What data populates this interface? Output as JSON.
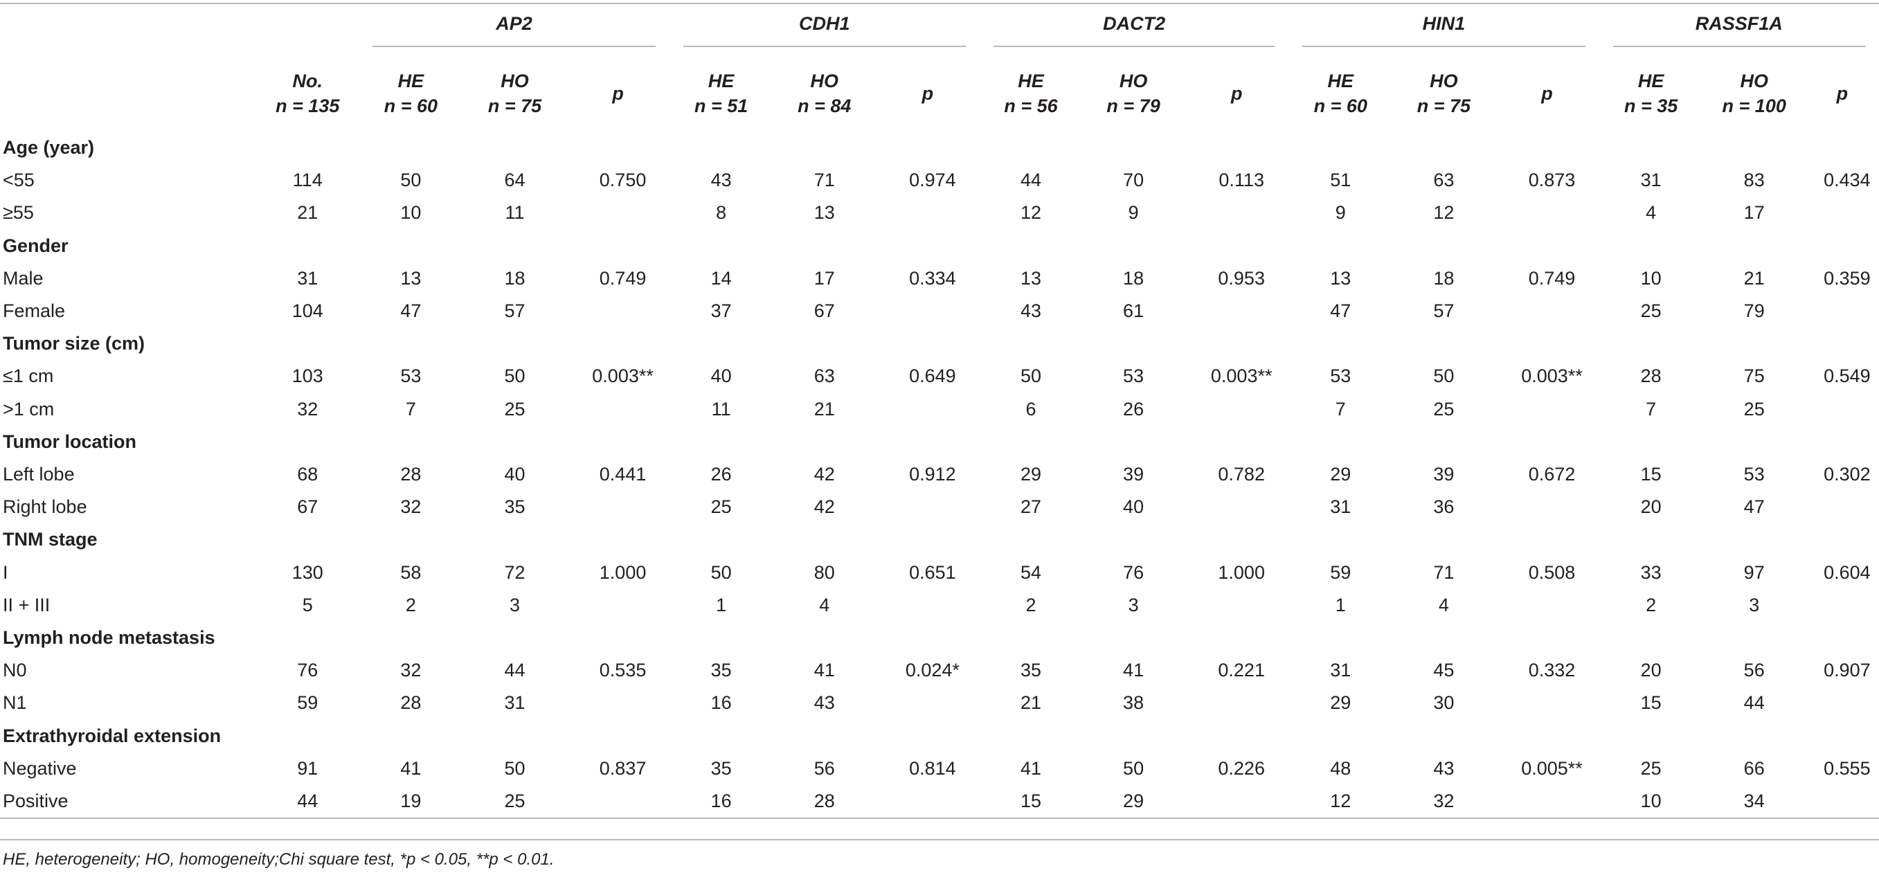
{
  "genes": [
    "AP2",
    "CDH1",
    "DACT2",
    "HIN1",
    "RASSF1A"
  ],
  "header": {
    "total": {
      "label": "No.",
      "n": "n = 135"
    },
    "gene_subheaders": [
      {
        "he": "HE",
        "he_n": "n = 60",
        "ho": "HO",
        "ho_n": "n = 75",
        "p": "p"
      },
      {
        "he": "HE",
        "he_n": "n = 51",
        "ho": "HO",
        "ho_n": "n = 84",
        "p": "p"
      },
      {
        "he": "HE",
        "he_n": "n = 56",
        "ho": "HO",
        "ho_n": "n = 79",
        "p": "p"
      },
      {
        "he": "HE",
        "he_n": "n = 60",
        "ho": "HO",
        "ho_n": "n = 75",
        "p": "p"
      },
      {
        "he": "HE",
        "he_n": "n = 35",
        "ho": "HO",
        "ho_n": "n = 100",
        "p": "p"
      }
    ]
  },
  "sections": [
    {
      "title": "Age (year)",
      "rows": [
        {
          "label": "<55",
          "no": "114",
          "vals": [
            "50",
            "64",
            "0.750",
            "43",
            "71",
            "0.974",
            "44",
            "70",
            "0.113",
            "51",
            "63",
            "0.873",
            "31",
            "83",
            "0.434"
          ]
        },
        {
          "label": "≥55",
          "no": "21",
          "vals": [
            "10",
            "11",
            "",
            "8",
            "13",
            "",
            "12",
            "9",
            "",
            "9",
            "12",
            "",
            "4",
            "17",
            ""
          ]
        }
      ]
    },
    {
      "title": "Gender",
      "rows": [
        {
          "label": "Male",
          "no": "31",
          "vals": [
            "13",
            "18",
            "0.749",
            "14",
            "17",
            "0.334",
            "13",
            "18",
            "0.953",
            "13",
            "18",
            "0.749",
            "10",
            "21",
            "0.359"
          ]
        },
        {
          "label": "Female",
          "no": "104",
          "vals": [
            "47",
            "57",
            "",
            "37",
            "67",
            "",
            "43",
            "61",
            "",
            "47",
            "57",
            "",
            "25",
            "79",
            ""
          ]
        }
      ]
    },
    {
      "title": "Tumor size (cm)",
      "rows": [
        {
          "label": "≤1 cm",
          "no": "103",
          "vals": [
            "53",
            "50",
            "0.003**",
            "40",
            "63",
            "0.649",
            "50",
            "53",
            "0.003**",
            "53",
            "50",
            "0.003**",
            "28",
            "75",
            "0.549"
          ]
        },
        {
          "label": ">1 cm",
          "no": "32",
          "vals": [
            "7",
            "25",
            "",
            "11",
            "21",
            "",
            "6",
            "26",
            "",
            "7",
            "25",
            "",
            "7",
            "25",
            ""
          ]
        }
      ]
    },
    {
      "title": "Tumor location",
      "rows": [
        {
          "label": "Left lobe",
          "no": "68",
          "vals": [
            "28",
            "40",
            "0.441",
            "26",
            "42",
            "0.912",
            "29",
            "39",
            "0.782",
            "29",
            "39",
            "0.672",
            "15",
            "53",
            "0.302"
          ]
        },
        {
          "label": "Right lobe",
          "no": "67",
          "vals": [
            "32",
            "35",
            "",
            "25",
            "42",
            "",
            "27",
            "40",
            "",
            "31",
            "36",
            "",
            "20",
            "47",
            ""
          ]
        }
      ]
    },
    {
      "title": "TNM stage",
      "rows": [
        {
          "label": "I",
          "no": "130",
          "vals": [
            "58",
            "72",
            "1.000",
            "50",
            "80",
            "0.651",
            "54",
            "76",
            "1.000",
            "59",
            "71",
            "0.508",
            "33",
            "97",
            "0.604"
          ]
        },
        {
          "label": "II + III",
          "no": "5",
          "vals": [
            "2",
            "3",
            "",
            "1",
            "4",
            "",
            "2",
            "3",
            "",
            "1",
            "4",
            "",
            "2",
            "3",
            ""
          ]
        }
      ]
    },
    {
      "title": "Lymph node metastasis",
      "rows": [
        {
          "label": "N0",
          "no": "76",
          "vals": [
            "32",
            "44",
            "0.535",
            "35",
            "41",
            "0.024*",
            "35",
            "41",
            "0.221",
            "31",
            "45",
            "0.332",
            "20",
            "56",
            "0.907"
          ]
        },
        {
          "label": "N1",
          "no": "59",
          "vals": [
            "28",
            "31",
            "",
            "16",
            "43",
            "",
            "21",
            "38",
            "",
            "29",
            "30",
            "",
            "15",
            "44",
            ""
          ]
        }
      ]
    },
    {
      "title": "Extrathyroidal extension",
      "rows": [
        {
          "label": "Negative",
          "no": "91",
          "vals": [
            "41",
            "50",
            "0.837",
            "35",
            "56",
            "0.814",
            "41",
            "50",
            "0.226",
            "48",
            "43",
            "0.005**",
            "25",
            "66",
            "0.555"
          ]
        },
        {
          "label": "Positive",
          "no": "44",
          "vals": [
            "19",
            "25",
            "",
            "16",
            "28",
            "",
            "15",
            "29",
            "",
            "12",
            "32",
            "",
            "10",
            "34",
            ""
          ]
        }
      ]
    }
  ],
  "footnote": "HE, heterogeneity; HO, homogeneity;Chi square test, *p < 0.05, **p < 0.01."
}
